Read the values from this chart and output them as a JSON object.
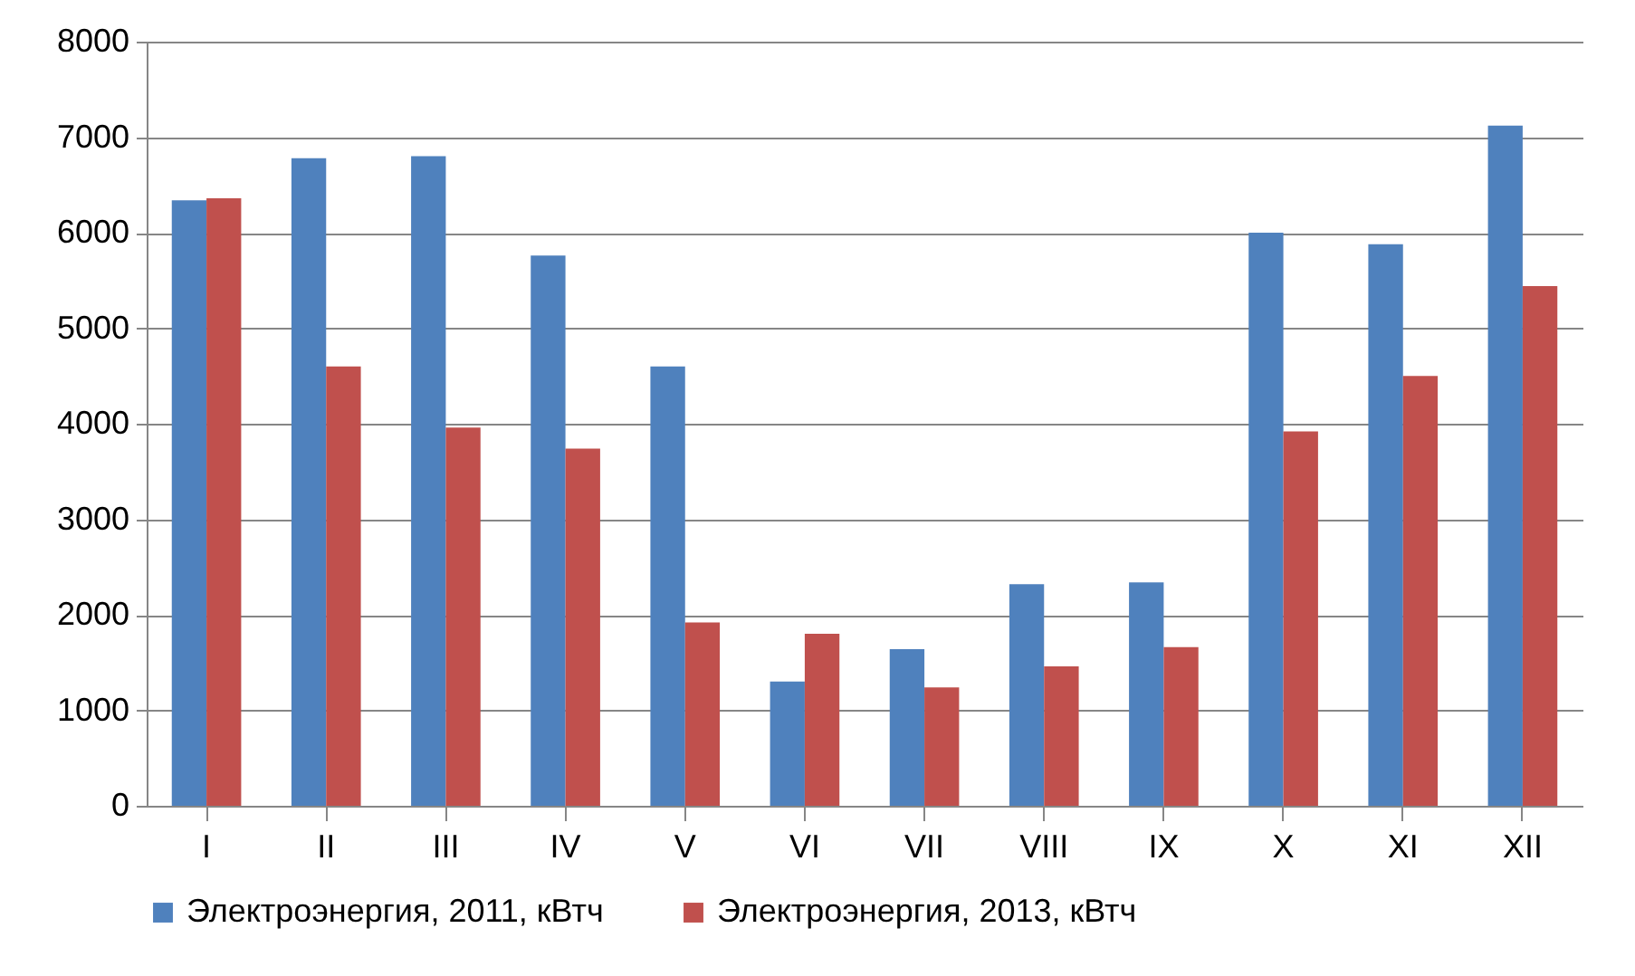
{
  "chart_data": {
    "type": "bar",
    "categories": [
      "I",
      "II",
      "III",
      "IV",
      "V",
      "VI",
      "VII",
      "VIII",
      "IX",
      "X",
      "XI",
      "XII"
    ],
    "series": [
      {
        "name": "Электроэнергия, 2011, кВтч",
        "color": "#4f81bd",
        "values": [
          6340,
          6780,
          6800,
          5760,
          4600,
          1300,
          1640,
          2320,
          2340,
          6000,
          5880,
          7120
        ]
      },
      {
        "name": "Электроэнергия, 2013, кВтч",
        "color": "#c0504d",
        "values": [
          6360,
          4600,
          3960,
          3740,
          1920,
          1800,
          1240,
          1460,
          1660,
          3920,
          4500,
          5440
        ]
      }
    ],
    "ylim": [
      0,
      8000
    ],
    "yticks": [
      0,
      1000,
      2000,
      3000,
      4000,
      5000,
      6000,
      7000,
      8000
    ],
    "grid": "y",
    "legend": "bottom"
  }
}
